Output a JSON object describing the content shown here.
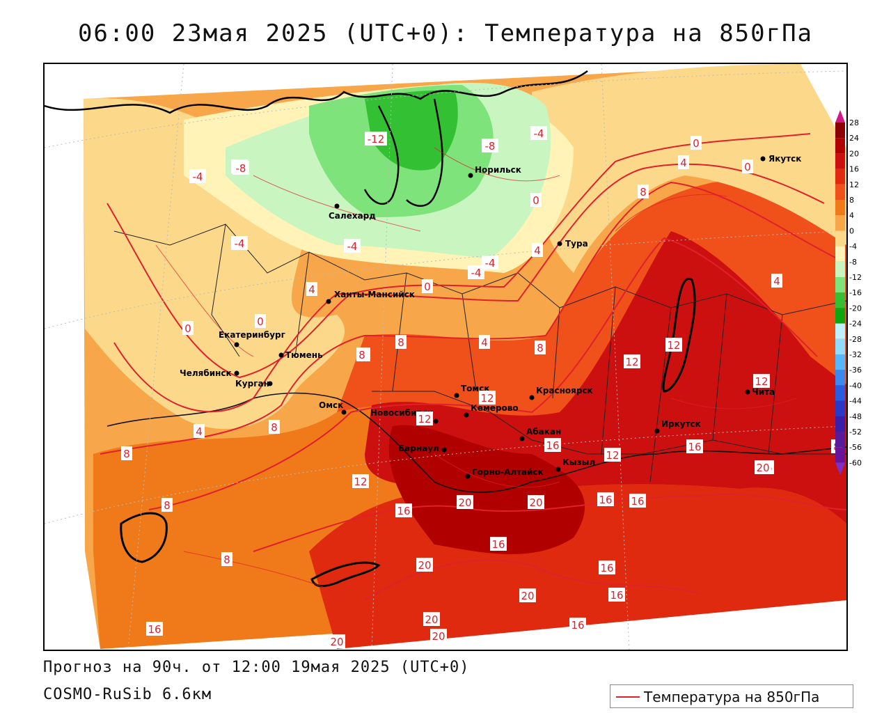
{
  "header": {
    "title": "06:00 23мая 2025 (UTC+0): Температура на 850гПа"
  },
  "footer": {
    "forecast": "Прогноз на 90ч. от 12:00 19мая 2025 (UTC+0)",
    "model": "COSMO-RuSib 6.6км"
  },
  "legend": {
    "line_label": "Температура на 850гПа",
    "line_color": "#e0202a"
  },
  "colorbar": {
    "ticks": [
      "28",
      "24",
      "20",
      "16",
      "12",
      "8",
      "4",
      "0",
      "-4",
      "-8",
      "-12",
      "-16",
      "-20",
      "-24",
      "-28",
      "-32",
      "-36",
      "-40",
      "-44",
      "-48",
      "-52",
      "-56",
      "-60"
    ],
    "colors": [
      "#8b0000",
      "#b00000",
      "#cc1010",
      "#e02a10",
      "#f0501a",
      "#f07a1a",
      "#f7a64a",
      "#fcd98a",
      "#fff3b8",
      "#c8f5c0",
      "#7de37a",
      "#33c033",
      "#0ea50e",
      "#bff0ff",
      "#8fdcff",
      "#55b7ff",
      "#3a88f0",
      "#2a5ce0",
      "#2a39c8",
      "#3a1fa8",
      "#5a1b9a",
      "#6a149a"
    ],
    "top_cap": "#d01a8a",
    "bottom_cap": "#7b2fc8"
  },
  "cities": [
    {
      "name": "Якутск"
    },
    {
      "name": "Норильск"
    },
    {
      "name": "Салехард"
    },
    {
      "name": "Тура"
    },
    {
      "name": "Ханты-Мансийск"
    },
    {
      "name": "Екатеринбург"
    },
    {
      "name": "Тюмень"
    },
    {
      "name": "Челябинск"
    },
    {
      "name": "Курган"
    },
    {
      "name": "Омск"
    },
    {
      "name": "Томск"
    },
    {
      "name": "Красноярск"
    },
    {
      "name": "Новосибирск"
    },
    {
      "name": "Кемерово"
    },
    {
      "name": "Абакан"
    },
    {
      "name": "Барнаул"
    },
    {
      "name": "Горно-Алтайск"
    },
    {
      "name": "Кызыл"
    },
    {
      "name": "Иркутск"
    },
    {
      "name": "Чита"
    }
  ],
  "isolines": [
    "-12",
    "-8",
    "-4",
    "-4",
    "-8",
    "-4",
    "-4",
    "-4",
    "-4",
    "-4",
    "0",
    "0",
    "0",
    "0",
    "0",
    "0",
    "4",
    "4",
    "4",
    "4",
    "4",
    "4",
    "8",
    "8",
    "8",
    "8",
    "8",
    "8",
    "8",
    "8",
    "8",
    "8",
    "12",
    "12",
    "12",
    "12",
    "12",
    "12",
    "12",
    "16",
    "16",
    "16",
    "16",
    "16",
    "16",
    "16",
    "16",
    "16",
    "16",
    "16",
    "20",
    "20",
    "20",
    "20",
    "20",
    "20",
    "20",
    "20"
  ]
}
